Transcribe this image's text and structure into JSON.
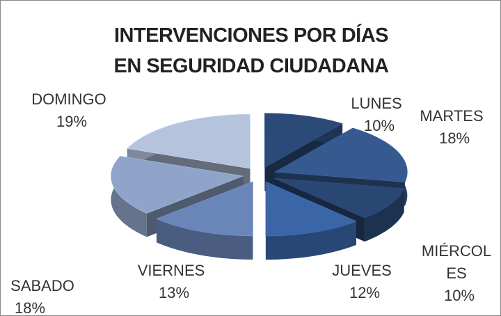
{
  "chart_data": {
    "type": "pie3d",
    "title": "INTERVENCIONES POR DÍAS EN SEGURIDAD CIUDADANA",
    "categories": [
      "LUNES",
      "MARTES",
      "MIÉRCOLES",
      "JUEVES",
      "VIERNES",
      "SABADO",
      "DOMINGO"
    ],
    "values": [
      10,
      18,
      10,
      12,
      13,
      18,
      19
    ],
    "value_labels": [
      "10%",
      "18%",
      "10%",
      "12%",
      "13%",
      "18%",
      "19%"
    ],
    "colors": [
      "#2c4a78",
      "#36598f",
      "#2a4773",
      "#3a65a6",
      "#6a85b8",
      "#90a4c9",
      "#b6c3dc"
    ]
  }
}
